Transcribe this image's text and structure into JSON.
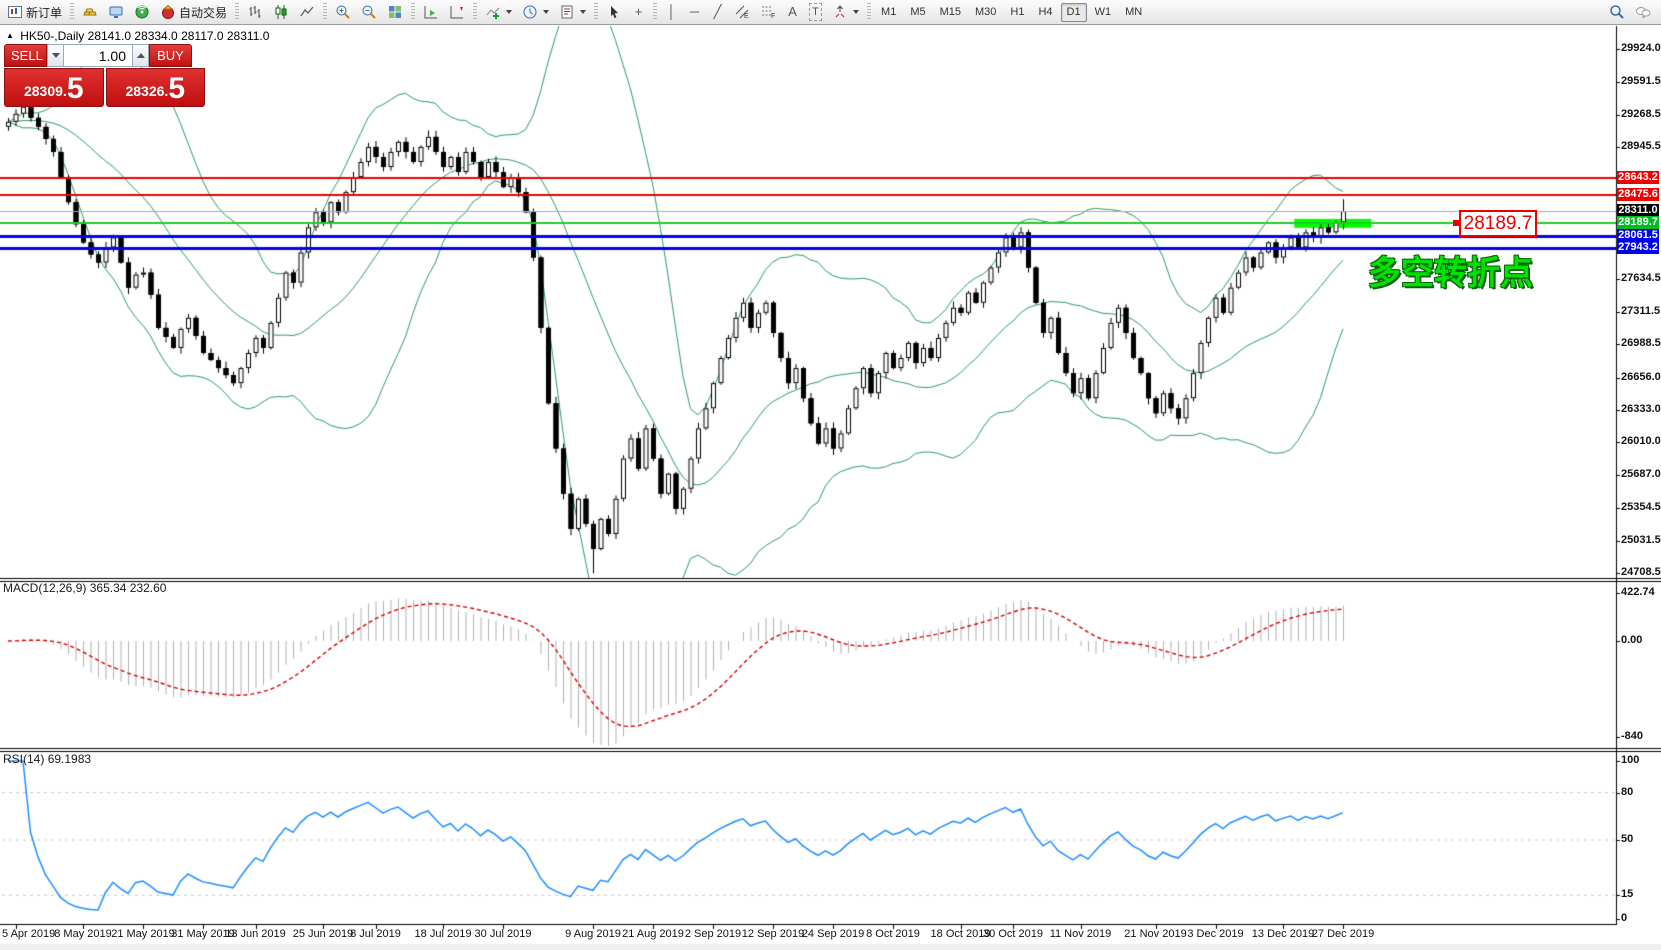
{
  "toolbar": {
    "new_order_label": "新订单",
    "autotrade_label": "自动交易",
    "timeframes": [
      "M1",
      "M5",
      "M15",
      "M30",
      "H1",
      "H4",
      "D1",
      "W1",
      "MN"
    ],
    "active_timeframe": "D1",
    "icons": {
      "collapse_marker": "▲",
      "crosshair": "+",
      "vline": "│",
      "hline": "─",
      "trendline": "╱",
      "text": "A",
      "text_label": "T"
    }
  },
  "chart": {
    "title": "HK50-,Daily",
    "ohlc": "28141.0 28334.0 28117.0 28311.0",
    "trade_panel": {
      "sell_label": "SELL",
      "buy_label": "BUY",
      "volume": "1.00",
      "sell_price": "28309.",
      "sell_price_big": "5",
      "buy_price": "28326.",
      "buy_price_big": "5"
    },
    "annotation_text": "多空转折点",
    "callout_price": "28189.7"
  },
  "chart_data": {
    "type": "candlestick",
    "symbol": "HK50",
    "period": "Daily",
    "grid": false,
    "seed": 11,
    "first_open": 29150,
    "closes": [
      29200,
      29280,
      29350,
      29240,
      29150,
      29030,
      28900,
      28650,
      28400,
      28180,
      28000,
      27880,
      27800,
      27950,
      28050,
      27800,
      27550,
      27680,
      27700,
      27480,
      27150,
      27060,
      26950,
      27140,
      27250,
      27070,
      26900,
      26830,
      26750,
      26680,
      26600,
      26750,
      26900,
      27050,
      26950,
      27200,
      27450,
      27700,
      27600,
      27900,
      28150,
      28300,
      28200,
      28400,
      28300,
      28500,
      28650,
      28800,
      28950,
      28850,
      28750,
      28900,
      29000,
      28900,
      28800,
      28950,
      29050,
      28900,
      28750,
      28850,
      28700,
      28900,
      28800,
      28650,
      28800,
      28700,
      28550,
      28650,
      28500,
      28300,
      27850,
      27150,
      26400,
      25950,
      25500,
      25150,
      25450,
      25200,
      24950,
      25250,
      25100,
      25450,
      25850,
      26050,
      25750,
      26150,
      25850,
      25500,
      25700,
      25350,
      25550,
      25850,
      26150,
      26350,
      26600,
      26850,
      27050,
      27250,
      27400,
      27150,
      27300,
      27400,
      27100,
      26850,
      26600,
      26750,
      26450,
      26200,
      26000,
      26150,
      25950,
      26100,
      26350,
      26550,
      26750,
      26500,
      26700,
      26900,
      26750,
      26850,
      27000,
      26800,
      26950,
      26850,
      27050,
      27200,
      27350,
      27300,
      27500,
      27400,
      27600,
      27750,
      27900,
      28050,
      27950,
      28100,
      27750,
      27400,
      27100,
      27250,
      26900,
      26700,
      26500,
      26650,
      26450,
      26700,
      26950,
      27200,
      27350,
      27100,
      26850,
      26700,
      26450,
      26300,
      26500,
      26350,
      26250,
      26450,
      26700,
      27000,
      27250,
      27450,
      27300,
      27550,
      27700,
      27850,
      27750,
      27900,
      28000,
      27850,
      27950,
      28050,
      27950,
      28100,
      28050,
      28150,
      28100,
      28200,
      28311
    ],
    "special": {
      "crash_low_bar": 78,
      "crash_low": 24708.5,
      "first_peak_bar": 2,
      "first_peak_high": 29390,
      "last_bar": {
        "open": 28200,
        "high": 28430,
        "low": 28130,
        "close": 28311
      }
    },
    "y_ticks": [
      "29924.0",
      "29591.5",
      "29268.5",
      "28945.5",
      "27634.5",
      "27311.5",
      "26988.5",
      "26656.0",
      "26333.0",
      "26010.0",
      "25687.0",
      "25354.5",
      "25031.5",
      "24708.5"
    ],
    "hlines": [
      {
        "price": 28643.2,
        "label": "28643.2",
        "color": "#ee0000",
        "badge_bg": "#ee0000",
        "width": 2
      },
      {
        "price": 28475.6,
        "label": "28475.6",
        "color": "#ee0000",
        "badge_bg": "#ee0000",
        "width": 2
      },
      {
        "price": 28311.0,
        "label": "28311.0",
        "color": "#ababab",
        "badge_bg": "#000000",
        "width": 1
      },
      {
        "price": 28189.7,
        "label": "28189.7",
        "color": "#22cc22",
        "badge_bg": "#00bd22",
        "width": 2
      },
      {
        "price": 28061.5,
        "label": "28061.5",
        "color": "#0000ee",
        "badge_bg": "#0000ee",
        "width": 3
      },
      {
        "price": 27943.2,
        "label": "27943.2",
        "color": "#0000ee",
        "badge_bg": "#0000ee",
        "width": 3
      }
    ],
    "highlight_segment": {
      "price": 28189.7,
      "from_bar": 171.5,
      "to_bar": 181.8,
      "color": "#00ff00",
      "thickness": 9
    },
    "bollinger": {
      "period": 20,
      "deviation": 2,
      "color": "#2e9b62"
    },
    "macd": {
      "label": "MACD(12,26,9)",
      "value": "365.34",
      "signal_value": "232.60",
      "fast": 12,
      "slow": 26,
      "signal": 9,
      "axis": [
        "422.74",
        "0.00",
        "-840"
      ],
      "axis_values": [
        422.74,
        0,
        -840
      ],
      "histogram_color": "#b2b2b2",
      "signal_color": "#dd0000"
    },
    "rsi": {
      "label": "RSI(14)",
      "value": "69.1983",
      "period": 14,
      "axis": [
        "100",
        "80",
        "50",
        "15",
        "0"
      ],
      "axis_values": [
        100,
        80,
        50,
        15,
        0
      ],
      "levels": [
        80,
        50,
        15
      ],
      "color": "#1e8fff",
      "level_color": "#c9c9c9"
    },
    "x_labels": [
      {
        "text": "5 Apr 2019",
        "bar": 1
      },
      {
        "text": "8 May 2019",
        "bar": 10
      },
      {
        "text": "21 May 2019",
        "bar": 18
      },
      {
        "text": "31 May 2019",
        "bar": 26
      },
      {
        "text": "13 Jun 2019",
        "bar": 33
      },
      {
        "text": "25 Jun 2019",
        "bar": 42
      },
      {
        "text": "8 Jul 2019",
        "bar": 49
      },
      {
        "text": "18 Jul 2019",
        "bar": 58
      },
      {
        "text": "30 Jul 2019",
        "bar": 66
      },
      {
        "text": "9 Aug 2019",
        "bar": 78
      },
      {
        "text": "21 Aug 2019",
        "bar": 86
      },
      {
        "text": "2 Sep 2019",
        "bar": 94
      },
      {
        "text": "12 Sep 2019",
        "bar": 102
      },
      {
        "text": "24 Sep 2019",
        "bar": 110
      },
      {
        "text": "8 Oct 2019",
        "bar": 118
      },
      {
        "text": "18 Oct 2019",
        "bar": 127
      },
      {
        "text": "30 Oct 2019",
        "bar": 134
      },
      {
        "text": "11 Nov 2019",
        "bar": 143
      },
      {
        "text": "21 Nov 2019",
        "bar": 153
      },
      {
        "text": "3 Dec 2019",
        "bar": 161
      },
      {
        "text": "13 Dec 2019",
        "bar": 170
      },
      {
        "text": "27 Dec 2019",
        "bar": 178
      }
    ]
  },
  "colors": {
    "hline_red": "#ee0000",
    "hline_blue": "#0000ee",
    "hline_green": "#22cc22",
    "highlight_lime": "#00ff00",
    "annotation_green": "#00e200",
    "panel_red": "#c21212",
    "rsi_blue": "#1e8fff",
    "band_green": "#2e9b62",
    "macd_signal_red": "#dd0000"
  }
}
